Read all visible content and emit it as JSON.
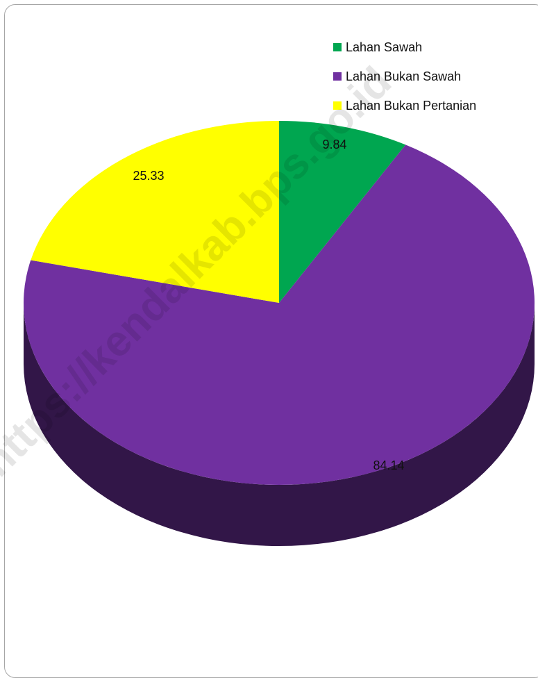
{
  "chart_data": {
    "type": "pie",
    "title": "",
    "slices": [
      {
        "label": "Lahan Sawah",
        "value": 9.84,
        "display": "9.84",
        "color": "#00a650"
      },
      {
        "label": "Lahan Bukan Sawah",
        "value": 84.14,
        "display": "84.14",
        "color": "#7030a0"
      },
      {
        "label": "Lahan Bukan Pertanian",
        "value": 25.33,
        "display": "25.33",
        "color": "#ffff00"
      }
    ],
    "legend_position": "top-right",
    "three_d": true
  },
  "watermark": "https://kendalkab.bps.go.id"
}
